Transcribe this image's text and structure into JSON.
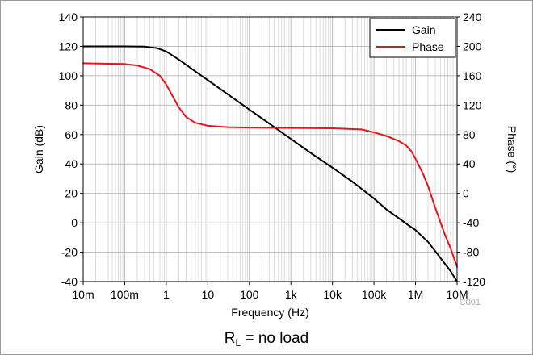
{
  "chart_data": {
    "type": "line",
    "xlabel": "Frequency (Hz)",
    "ylabel": "Gain (dB)",
    "y2label": "Phase (°)",
    "x_scale": "log",
    "xlim": [
      0.01,
      10000000
    ],
    "ylim": [
      -40,
      140
    ],
    "y2lim": [
      -120,
      240
    ],
    "x_ticks": [
      0.01,
      0.1,
      1,
      10,
      100,
      1000,
      10000,
      100000,
      1000000,
      10000000
    ],
    "x_tick_labels": [
      "10m",
      "100m",
      "1",
      "10",
      "100",
      "1k",
      "10k",
      "100k",
      "1M",
      "10M"
    ],
    "y_ticks": [
      -40,
      -20,
      0,
      20,
      40,
      60,
      80,
      100,
      120,
      140
    ],
    "y_tick_labels": [
      "-40",
      "-20",
      "0",
      "20",
      "40",
      "60",
      "80",
      "100",
      "120",
      "140"
    ],
    "y2_ticks": [
      -120,
      -80,
      -40,
      0,
      40,
      80,
      120,
      160,
      200,
      240
    ],
    "y2_tick_labels": [
      "-120",
      "-80",
      "-40",
      "0",
      "40",
      "80",
      "120",
      "160",
      "200",
      "240"
    ],
    "grid": true,
    "legend_position": "top-right",
    "watermark": "C001",
    "series": [
      {
        "name": "Gain",
        "color": "#000000",
        "axis": "left",
        "x": [
          0.01,
          0.1,
          0.3,
          0.6,
          1,
          2,
          3,
          5,
          10,
          30,
          100,
          300,
          1000,
          3000,
          10000,
          30000,
          100000,
          200000,
          400000,
          700000,
          1000000,
          2000000,
          4000000,
          7000000,
          10000000
        ],
        "y": [
          120,
          120,
          119.8,
          118.8,
          116.5,
          111,
          107.5,
          103,
          97,
          87.5,
          77,
          67.5,
          57,
          47.5,
          37.5,
          28,
          16.5,
          9,
          3,
          -2,
          -5,
          -13,
          -24,
          -33,
          -40
        ]
      },
      {
        "name": "Phase",
        "color": "#e8141b",
        "axis": "right",
        "x": [
          0.01,
          0.1,
          0.2,
          0.4,
          0.7,
          1,
          1.5,
          2,
          3,
          5,
          10,
          30,
          100,
          1000,
          10000,
          50000,
          100000,
          200000,
          400000,
          600000,
          800000,
          1000000,
          1500000,
          2000000,
          3000000,
          5000000,
          7000000,
          10000000
        ],
        "y": [
          177,
          176,
          174,
          169,
          160,
          148,
          130,
          117,
          104,
          96,
          92,
          90,
          89.5,
          89,
          88.5,
          87,
          83,
          78,
          71,
          65,
          57,
          47,
          27,
          10,
          -20,
          -55,
          -75,
          -100
        ]
      }
    ]
  },
  "footer": {
    "label_main": "R",
    "label_sub": "L",
    "label_rest": " = no load"
  }
}
